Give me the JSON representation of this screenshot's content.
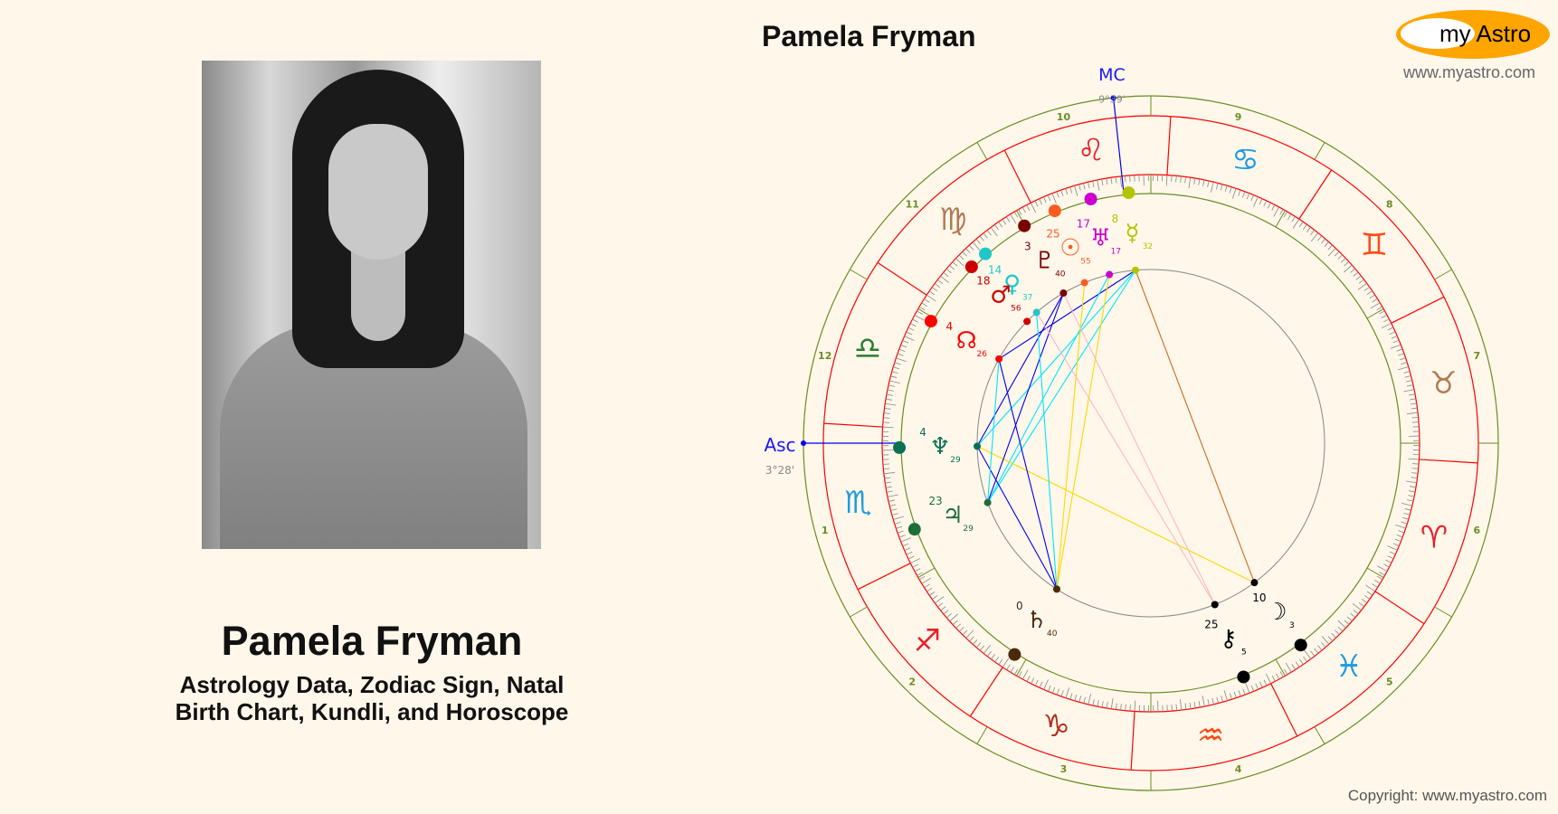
{
  "header": {
    "title": "Pamela Fryman"
  },
  "logo": {
    "text": "my Astro",
    "site": "www.myastro.com",
    "color": "#ffa500"
  },
  "profile": {
    "name": "Pamela Fryman",
    "subtitle_line1": "Astrology Data, Zodiac Sign, Natal",
    "subtitle_line2": "Birth Chart, Kundli, and Horoscope"
  },
  "footer": {
    "copyright": "Copyright: www.myastro.com"
  },
  "chart_data": {
    "type": "natal-wheel",
    "angles": {
      "asc": {
        "label": "Asc",
        "sign": "Scorpio",
        "degree": 3,
        "minute": 28,
        "text": "3°28'"
      },
      "mc": {
        "label": "MC",
        "sign": "Leo",
        "degree": 9,
        "minute": 39,
        "text": "9°39'"
      }
    },
    "house_system": "equal",
    "house_numbers": [
      "1",
      "2",
      "3",
      "4",
      "5",
      "6",
      "7",
      "8",
      "9",
      "10",
      "11",
      "12"
    ],
    "signs": [
      {
        "name": "Aries",
        "glyph": "♈",
        "color": "#e8202a"
      },
      {
        "name": "Taurus",
        "glyph": "♉",
        "color": "#b07a55"
      },
      {
        "name": "Gemini",
        "glyph": "♊",
        "color": "#ff4a14"
      },
      {
        "name": "Cancer",
        "glyph": "♋",
        "color": "#1e9be0"
      },
      {
        "name": "Leo",
        "glyph": "♌",
        "color": "#e8202a"
      },
      {
        "name": "Virgo",
        "glyph": "♍",
        "color": "#b07a55"
      },
      {
        "name": "Libra",
        "glyph": "♎",
        "color": "#2e7d32"
      },
      {
        "name": "Scorpio",
        "glyph": "♏",
        "color": "#1e9be0"
      },
      {
        "name": "Sagittarius",
        "glyph": "♐",
        "color": "#e8202a"
      },
      {
        "name": "Capricorn",
        "glyph": "♑",
        "color": "#b03020"
      },
      {
        "name": "Aquarius",
        "glyph": "♒",
        "color": "#ff4a14"
      },
      {
        "name": "Pisces",
        "glyph": "♓",
        "color": "#1e9be0"
      }
    ],
    "planets": [
      {
        "name": "Sun",
        "glyph": "☉",
        "sign": "Leo",
        "degree": 25,
        "minute": 55,
        "color": "#ff5a1f"
      },
      {
        "name": "Moon",
        "glyph": "☽",
        "sign": "Pisces",
        "degree": 10,
        "minute": 3,
        "color": "#000000"
      },
      {
        "name": "Mercury",
        "glyph": "☿",
        "sign": "Leo",
        "degree": 8,
        "minute": 32,
        "color": "#b5c400"
      },
      {
        "name": "Venus",
        "glyph": "♀",
        "sign": "Virgo",
        "degree": 14,
        "minute": 37,
        "color": "#1ec8c8"
      },
      {
        "name": "Mars",
        "glyph": "♂",
        "sign": "Virgo",
        "degree": 18,
        "minute": 56,
        "color": "#cc0000"
      },
      {
        "name": "Jupiter",
        "glyph": "♃",
        "sign": "Scorpio",
        "degree": 23,
        "minute": 29,
        "color": "#1e6e3a"
      },
      {
        "name": "Saturn",
        "glyph": "♄",
        "sign": "Capricorn",
        "degree": 0,
        "minute": 40,
        "color": "#4a2a0a"
      },
      {
        "name": "Uranus",
        "glyph": "♅",
        "sign": "Leo",
        "degree": 17,
        "minute": 17,
        "color": "#cc00cc"
      },
      {
        "name": "Neptune",
        "glyph": "♆",
        "sign": "Scorpio",
        "degree": 4,
        "minute": 29,
        "color": "#0a7050"
      },
      {
        "name": "Pluto",
        "glyph": "♇",
        "sign": "Virgo",
        "degree": 3,
        "minute": 40,
        "color": "#7a0000"
      },
      {
        "name": "Node",
        "glyph": "☊",
        "sign": "Libra",
        "degree": 4,
        "minute": 26,
        "color": "#ff0000"
      },
      {
        "name": "Chiron",
        "glyph": "⚷",
        "sign": "Aquarius",
        "degree": 25,
        "minute": 5,
        "color": "#000000"
      }
    ],
    "aspects": [
      {
        "a": "Mercury",
        "b": "Moon",
        "color": "#d2691e"
      },
      {
        "a": "Mercury",
        "b": "Node",
        "color": "#0000ee"
      },
      {
        "a": "Mercury",
        "b": "Neptune",
        "color": "#00e5ff"
      },
      {
        "a": "Mercury",
        "b": "Jupiter",
        "color": "#00e5ff"
      },
      {
        "a": "Uranus",
        "b": "Jupiter",
        "color": "#00e5ff"
      },
      {
        "a": "Sun",
        "b": "Saturn",
        "color": "#ffd700"
      },
      {
        "a": "Uranus",
        "b": "Saturn",
        "color": "#ffd700"
      },
      {
        "a": "Neptune",
        "b": "Moon",
        "color": "#ffd700"
      },
      {
        "a": "Pluto",
        "b": "Jupiter",
        "color": "#0000ee"
      },
      {
        "a": "Pluto",
        "b": "Neptune",
        "color": "#0000ee"
      },
      {
        "a": "Node",
        "b": "Saturn",
        "color": "#0000ee"
      },
      {
        "a": "Neptune",
        "b": "Saturn",
        "color": "#0000ee"
      },
      {
        "a": "Venus",
        "b": "Saturn",
        "color": "#00e5ff"
      },
      {
        "a": "Node",
        "b": "Jupiter",
        "color": "#00e5ff"
      },
      {
        "a": "Pluto",
        "b": "Chiron",
        "color": "#ffb6c1"
      },
      {
        "a": "Venus",
        "b": "Chiron",
        "color": "#ffb6c1"
      }
    ]
  }
}
